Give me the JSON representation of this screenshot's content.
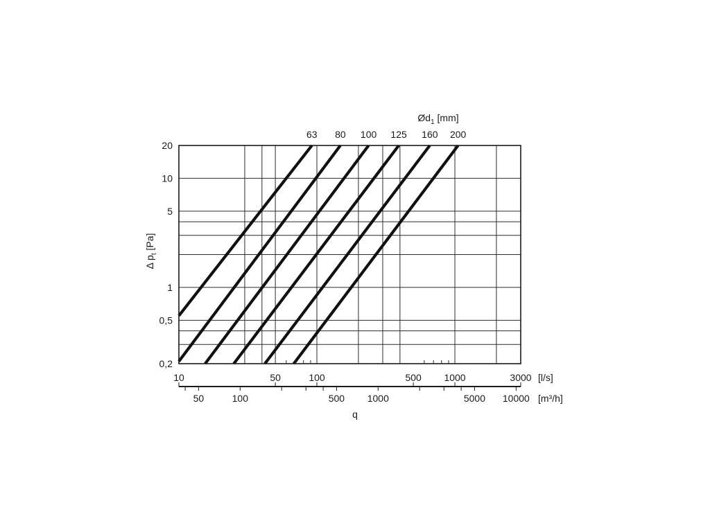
{
  "chart_data": {
    "type": "line",
    "xscale": "log",
    "yscale": "log",
    "grid": true,
    "legend_title": {
      "prefix": "Ød",
      "subscript": "1",
      "suffix": " [mm]"
    },
    "ylabel": {
      "prefix": "Δ p",
      "subscript": "t",
      "suffix": " [Pa]"
    },
    "xlabel": "q",
    "x_unit_primary": "[l/s]",
    "x_unit_secondary": "[m³/h]",
    "xlim": [
      10,
      3000
    ],
    "ylim": [
      0.2,
      20
    ],
    "x_ticks": [
      {
        "value": 10,
        "label": "10"
      },
      {
        "value": 50,
        "label": "50"
      },
      {
        "value": 100,
        "label": "100"
      },
      {
        "value": 500,
        "label": "500"
      },
      {
        "value": 1000,
        "label": "1000"
      },
      {
        "value": 3000,
        "label": "3000"
      }
    ],
    "x_ticks_secondary": [
      {
        "value": 50,
        "label": "50"
      },
      {
        "value": 100,
        "label": "100"
      },
      {
        "value": 500,
        "label": "500"
      },
      {
        "value": 1000,
        "label": "1000"
      },
      {
        "value": 5000,
        "label": "5000"
      },
      {
        "value": 10000,
        "label": "10000"
      }
    ],
    "y_ticks": [
      {
        "value": 0.2,
        "label": "0,2"
      },
      {
        "value": 0.5,
        "label": "0,5"
      },
      {
        "value": 1,
        "label": "1"
      },
      {
        "value": 5,
        "label": "5"
      },
      {
        "value": 10,
        "label": "10"
      },
      {
        "value": 20,
        "label": "20"
      }
    ],
    "x_grid": [
      30,
      40,
      50,
      100,
      200,
      300,
      400,
      1000,
      2000
    ],
    "y_grid": [
      0.2,
      0.3,
      0.4,
      0.5,
      1,
      2,
      3,
      4,
      5,
      10,
      20
    ],
    "series": [
      {
        "name": "63",
        "points": [
          [
            10,
            0.55
          ],
          [
            92,
            20
          ]
        ]
      },
      {
        "name": "80",
        "points": [
          [
            10,
            0.21
          ],
          [
            148,
            20
          ]
        ]
      },
      {
        "name": "100",
        "points": [
          [
            15.5,
            0.2
          ],
          [
            237,
            20
          ]
        ]
      },
      {
        "name": "125",
        "points": [
          [
            25,
            0.2
          ],
          [
            392,
            20
          ]
        ]
      },
      {
        "name": "160",
        "points": [
          [
            42,
            0.2
          ],
          [
            658,
            20
          ]
        ]
      },
      {
        "name": "200",
        "points": [
          [
            68,
            0.2
          ],
          [
            1055,
            20
          ]
        ]
      }
    ]
  }
}
